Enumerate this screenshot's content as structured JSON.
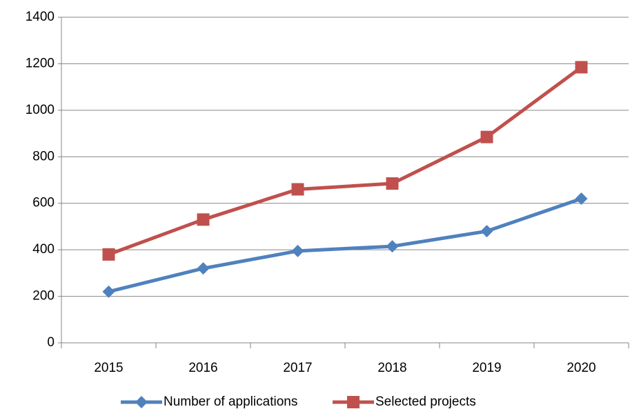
{
  "chart_data": {
    "type": "line",
    "categories": [
      "2015",
      "2016",
      "2017",
      "2018",
      "2019",
      "2020"
    ],
    "series": [
      {
        "name": "Number of applications",
        "color": "#4f81bd",
        "marker": "diamond",
        "values": [
          220,
          320,
          395,
          415,
          480,
          620
        ]
      },
      {
        "name": "Selected projects",
        "color": "#c0504d",
        "marker": "square",
        "values": [
          380,
          530,
          660,
          685,
          885,
          1185
        ]
      }
    ],
    "ylim": [
      0,
      1400
    ],
    "yticks": [
      0,
      200,
      400,
      600,
      800,
      1000,
      1200,
      1400
    ],
    "grid": true,
    "legend": "bottom"
  }
}
